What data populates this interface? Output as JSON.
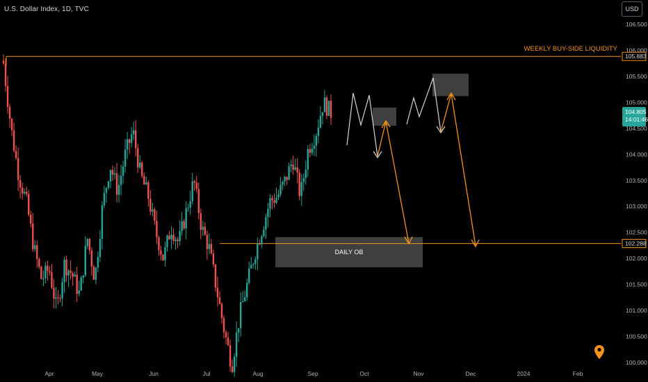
{
  "header": {
    "symbol_title": "U.S. Dollar Index, 1D, TVC",
    "currency_button": "USD"
  },
  "colors": {
    "background": "#000000",
    "bull": "#26a69a",
    "bear": "#ef5350",
    "orange": "#f7931a",
    "zone": "#4a4a4a",
    "sketch": "#d8d8d8",
    "axis_text": "#b2b5be"
  },
  "chart_data": {
    "type": "candlestick",
    "symbol": "U.S. Dollar Index",
    "interval": "1D",
    "source": "TVC",
    "ylim": [
      99.95,
      107.0
    ],
    "y_ticks": [
      "106.500",
      "106.000",
      "105.500",
      "105.000",
      "104.500",
      "104.000",
      "103.500",
      "103.000",
      "102.500",
      "102.000",
      "101.500",
      "101.000",
      "100.500",
      "100.000"
    ],
    "x_ticks": [
      "Apr",
      "May",
      "Jun",
      "Jul",
      "Aug",
      "Sep",
      "Oct",
      "Nov",
      "Dec",
      "2024",
      "Feb"
    ],
    "current_price": {
      "value": "104.805",
      "countdown": "14:01:46"
    },
    "levels": [
      {
        "label": "WEEKLY BUY-SIDE LIQUIDITY",
        "price": "105.883",
        "value": 105.883
      },
      {
        "label": "",
        "price": "102.288",
        "value": 102.288
      }
    ],
    "zones": [
      {
        "label": "DAILY OB",
        "top": 102.41,
        "bottom": 101.83
      },
      {
        "label": "",
        "top": 104.9,
        "bottom": 104.55
      },
      {
        "label": "",
        "top": 105.55,
        "bottom": 105.12
      }
    ],
    "anchors": [
      {
        "close": 105.75
      },
      {
        "close": 104.5
      },
      {
        "close": 103.6
      },
      {
        "close": 103.1
      },
      {
        "close": 102.2
      },
      {
        "close": 101.6
      },
      {
        "close": 101.8
      },
      {
        "close": 101.0
      },
      {
        "close": 101.9
      },
      {
        "close": 101.7
      },
      {
        "close": 101.3
      },
      {
        "close": 102.4
      },
      {
        "close": 101.6
      },
      {
        "close": 103.0
      },
      {
        "close": 103.8
      },
      {
        "close": 103.3
      },
      {
        "close": 104.0
      },
      {
        "close": 104.45
      },
      {
        "close": 103.6
      },
      {
        "close": 103.2
      },
      {
        "close": 102.5
      },
      {
        "close": 102.0
      },
      {
        "close": 102.6
      },
      {
        "close": 102.3
      },
      {
        "close": 102.9
      },
      {
        "close": 103.5
      },
      {
        "close": 102.6
      },
      {
        "close": 102.2
      },
      {
        "close": 101.4
      },
      {
        "close": 100.6
      },
      {
        "close": 99.95
      },
      {
        "close": 100.9
      },
      {
        "close": 101.5
      },
      {
        "close": 102.1
      },
      {
        "close": 102.6
      },
      {
        "close": 103.1
      },
      {
        "close": 103.2
      },
      {
        "close": 103.5
      },
      {
        "close": 103.9
      },
      {
        "close": 103.2
      },
      {
        "close": 104.1
      },
      {
        "close": 104.4
      },
      {
        "close": 105.0
      },
      {
        "close": 104.8
      }
    ]
  }
}
